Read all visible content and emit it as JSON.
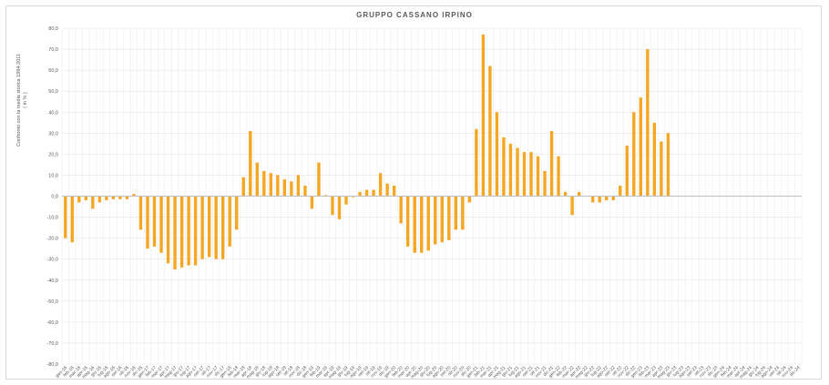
{
  "chart_data": {
    "type": "bar",
    "title": "GRUPPO CASSANO IRPINO",
    "ylabel": "Confronto con la media storica 1984-2011",
    "ylabel_unit": "( in % )",
    "ylim": [
      -80,
      80
    ],
    "ytick_step": 10,
    "yticks": [
      "80,0",
      "70,0",
      "60,0",
      "50,0",
      "40,0",
      "30,0",
      "20,0",
      "10,0",
      "0,0",
      "-10,0",
      "-20,0",
      "-30,0",
      "-40,0",
      "-50,0",
      "-60,0",
      "-70,0",
      "-80,0"
    ],
    "grid": true,
    "bar_color": "#f5a623",
    "categories": [
      "gen-16",
      "feb-16",
      "mar-16",
      "apr-16",
      "mag-16",
      "giu-16",
      "lug-16",
      "ago-16",
      "set-16",
      "ott-16",
      "nov-16",
      "dic-16",
      "gen-17",
      "feb-17",
      "mar-17",
      "apr-17",
      "mag-17",
      "giu-17",
      "lug-17",
      "ago-17",
      "set-17",
      "ott-17",
      "nov-17",
      "dic-17",
      "gen-18",
      "feb-18",
      "mar-18",
      "apr-18",
      "mag-18",
      "giu-18",
      "lug-18",
      "ago-18",
      "set-18",
      "ott-18",
      "nov-18",
      "dic-18",
      "gen-19",
      "feb-19",
      "mar-19",
      "apr-19",
      "mag-19",
      "giu-19",
      "lug-19",
      "ago-19",
      "set-19",
      "ott-19",
      "nov-19",
      "dic-19",
      "gen-20",
      "feb-20",
      "mar-20",
      "apr-20",
      "mag-20",
      "giu-20",
      "lug-20",
      "ago-20",
      "set-20",
      "ott-20",
      "nov-20",
      "dic-20",
      "gen-21",
      "feb-21",
      "mar-21",
      "apr-21",
      "mag-21",
      "giu-21",
      "lug-21",
      "ago-21",
      "set-21",
      "ott-21",
      "nov-21",
      "dic-21",
      "gen-22",
      "feb-22",
      "mar-22",
      "apr-22",
      "mag-22",
      "giu-22",
      "lug-22",
      "ago-22",
      "set-22",
      "ott-22",
      "nov-22",
      "dic-22",
      "gen-23",
      "feb-23",
      "mar-23",
      "apr-23",
      "mag-23",
      "giu-23",
      "lug-23",
      "ago-23",
      "set-23",
      "ott-23",
      "nov-23",
      "dic-23",
      "gen-24",
      "feb-24",
      "mar-24",
      "apr-24",
      "mag-24",
      "giu-24",
      "lug-24",
      "ago-24",
      "set-24",
      "ott-24",
      "nov-24",
      "dic-24"
    ],
    "values": [
      -20,
      -22,
      -3,
      -2,
      -6,
      -3,
      -2,
      -1.5,
      -1.5,
      -1.5,
      1,
      -16,
      -25,
      -24,
      -27,
      -32,
      -35,
      -34,
      -33,
      -33,
      -30,
      -29,
      -30,
      -30,
      -24,
      -16,
      9,
      31,
      16,
      12,
      11,
      10,
      8,
      7,
      10,
      5,
      -6,
      16,
      0.5,
      -9,
      -11,
      -4,
      -0.5,
      2,
      3,
      3,
      11,
      6,
      5,
      -13,
      -24,
      -27,
      -27,
      -26,
      -23,
      -22,
      -21,
      -16,
      -16,
      -3,
      32,
      77,
      62,
      40,
      28,
      25,
      23,
      21,
      21,
      19,
      12,
      31,
      19,
      2,
      -9,
      2,
      0,
      -3,
      -3,
      -2,
      -2,
      5,
      24,
      40,
      47,
      70,
      35,
      26,
      30,
      0,
      0,
      0,
      0,
      0,
      0,
      0,
      0,
      0,
      0,
      0,
      0,
      0,
      0,
      0,
      0,
      0,
      0,
      0
    ]
  }
}
